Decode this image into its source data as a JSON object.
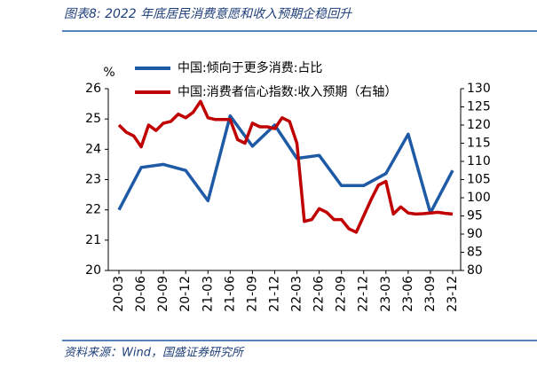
{
  "chart_data": {
    "type": "line",
    "title": "图表8:  2022 年底居民消费意愿和收入预期企稳回升",
    "source": "资料来源：Wind，国盛证券研究所",
    "ylabel": "%",
    "categories": [
      "20-03",
      null,
      null,
      "20-06",
      null,
      null,
      "20-09",
      null,
      null,
      "20-12",
      null,
      null,
      "21-03",
      null,
      null,
      "21-06",
      null,
      null,
      "21-09",
      null,
      null,
      "21-12",
      null,
      null,
      "22-03",
      null,
      null,
      "22-06",
      null,
      null,
      "22-09",
      null,
      null,
      "22-12",
      null,
      null,
      "23-03",
      null,
      null,
      "23-06",
      null,
      null,
      "23-09",
      null,
      null,
      "23-12"
    ],
    "series": [
      {
        "name": "中国:倾向于更多消费:占比",
        "color": "#1f5aa6",
        "x": [
          "20-03",
          "20-06",
          "20-09",
          "20-12",
          "21-03",
          "21-06",
          "21-09",
          "21-12",
          "22-03",
          "22-06",
          "22-09",
          "22-12",
          "23-03",
          "23-06",
          "23-09",
          "23-12"
        ],
        "values": [
          22.0,
          23.4,
          23.5,
          23.3,
          22.3,
          25.1,
          24.1,
          24.8,
          23.7,
          23.8,
          22.8,
          22.8,
          23.2,
          24.5,
          21.9,
          23.3
        ]
      },
      {
        "name": "中国:消费者信心指数:收入预期（右轴）",
        "color": "#c00000",
        "axis": "y2",
        "values": [
          120,
          118,
          117,
          114,
          120,
          118.5,
          120.5,
          121,
          123,
          122,
          123.5,
          126.5,
          122,
          121.5,
          121.5,
          121.5,
          116,
          115,
          120.5,
          119.5,
          119.5,
          119,
          122,
          121,
          115,
          93.5,
          94,
          97,
          96,
          94,
          94,
          91.5,
          90.5,
          95,
          99.5,
          103.5,
          104.5,
          95.5,
          97.5,
          95.8,
          95.5,
          95.6,
          95.8,
          96,
          95.7,
          95.5
        ]
      }
    ],
    "ylim": [
      20,
      26
    ],
    "yticks": [
      20,
      21,
      22,
      23,
      24,
      25,
      26
    ],
    "y2lim": [
      80,
      130
    ],
    "y2ticks": [
      80,
      85,
      90,
      95,
      100,
      105,
      110,
      115,
      120,
      125,
      130
    ],
    "grid": false,
    "legend": "upper-left"
  }
}
